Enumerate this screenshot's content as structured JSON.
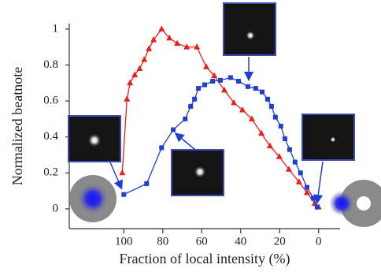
{
  "chart_data": {
    "type": "line",
    "xlabel": "Fraction of local intensity (%)",
    "ylabel": "Normalized beatnote",
    "xlim": [
      128,
      -11
    ],
    "xticks": [
      100,
      80,
      60,
      40,
      20,
      0
    ],
    "ylim": [
      -0.11,
      1.03
    ],
    "yticks": [
      0,
      0.2,
      0.4,
      0.6,
      0.8,
      1
    ],
    "series": [
      {
        "color": "#e8201c",
        "marker": "triangle",
        "x": [
          100.8,
          98.4,
          96.8,
          94.4,
          91.9,
          89.5,
          87.1,
          84.7,
          80.6,
          76.6,
          72.6,
          67.7,
          62.5,
          57.7,
          53.6,
          48.4,
          43.5,
          39.1,
          34.3,
          29.4,
          25.0,
          20.2,
          15.3,
          10.1,
          6.0,
          2.0,
          0
        ],
        "values": [
          0.2,
          0.61,
          0.7,
          0.745,
          0.78,
          0.83,
          0.89,
          0.94,
          1.0,
          0.95,
          0.92,
          0.9,
          0.9,
          0.79,
          0.74,
          0.66,
          0.59,
          0.55,
          0.5,
          0.42,
          0.35,
          0.29,
          0.22,
          0.15,
          0.09,
          0.03,
          0.01
        ]
      },
      {
        "color": "#1f3fd0",
        "marker": "square",
        "x": [
          100,
          88.3,
          80.6,
          74.6,
          68.5,
          65.7,
          63.7,
          61.7,
          58.5,
          54.4,
          50.4,
          45.2,
          41.1,
          36.3,
          32.3,
          29.0,
          26.2,
          24.2,
          22.2,
          19.4,
          17.3,
          14.9,
          12.1,
          9.3,
          6.0,
          2.8,
          0.8
        ],
        "values": [
          0.08,
          0.14,
          0.34,
          0.44,
          0.5,
          0.57,
          0.61,
          0.67,
          0.69,
          0.71,
          0.715,
          0.73,
          0.71,
          0.68,
          0.67,
          0.65,
          0.61,
          0.57,
          0.51,
          0.46,
          0.39,
          0.33,
          0.26,
          0.2,
          0.12,
          0.06,
          0.01
        ]
      }
    ]
  }
}
